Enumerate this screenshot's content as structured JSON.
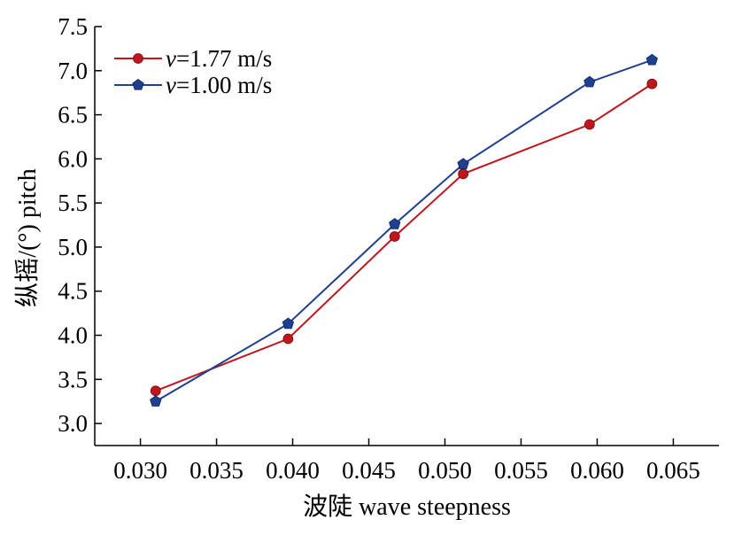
{
  "chart_data": {
    "type": "line",
    "xlabel": "波陡 wave steepness",
    "ylabel": "纵摇/(°) pitch",
    "xlim": [
      0.027,
      0.068
    ],
    "ylim": [
      2.75,
      7.5
    ],
    "x_ticks": [
      "0.030",
      "0.035",
      "0.040",
      "0.045",
      "0.050",
      "0.055",
      "0.060",
      "0.065"
    ],
    "x_tick_values": [
      0.03,
      0.035,
      0.04,
      0.045,
      0.05,
      0.055,
      0.06,
      0.065
    ],
    "y_ticks": [
      "3.0",
      "3.5",
      "4.0",
      "4.5",
      "5.0",
      "5.5",
      "6.0",
      "6.5",
      "7.0",
      "7.5"
    ],
    "y_tick_values": [
      3.0,
      3.5,
      4.0,
      4.5,
      5.0,
      5.5,
      6.0,
      6.5,
      7.0,
      7.5
    ],
    "grid": false,
    "legend_position": "top-left",
    "series": [
      {
        "name": "v=1.77 m/s",
        "legend_italic": "v",
        "legend_rest": "=1.77 m/s",
        "color": "#c0161d",
        "marker": "circle",
        "x": [
          0.031,
          0.0397,
          0.0467,
          0.0512,
          0.0595,
          0.0636
        ],
        "values": [
          3.37,
          3.96,
          5.12,
          5.83,
          6.39,
          6.85
        ]
      },
      {
        "name": "v=1.00 m/s",
        "legend_italic": "v",
        "legend_rest": "=1.00 m/s",
        "color": "#1f3f8f",
        "marker": "pentagon",
        "x": [
          0.031,
          0.0397,
          0.0467,
          0.0512,
          0.0595,
          0.0636
        ],
        "values": [
          3.25,
          4.13,
          5.26,
          5.94,
          6.87,
          7.12
        ]
      }
    ]
  }
}
